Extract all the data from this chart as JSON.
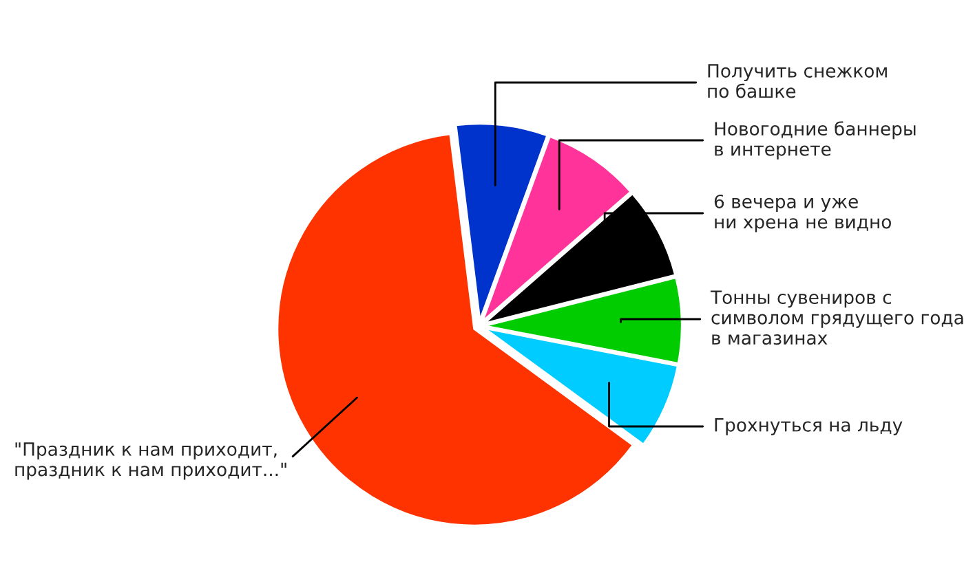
{
  "chart_data": {
    "type": "pie",
    "categories": [
      "Получить снежком\nпо башке",
      "Новогодние баннеры\nв интернете",
      "6 вечера и уже\nни хрена не видно",
      "Тонны сувениров с\nсимволом грядущего года\nв магазинах",
      "Грохнуться на льду",
      "\"Праздник к нам приходит,\nпраздник к нам приходит...\""
    ],
    "values": [
      7.5,
      8,
      7.5,
      7,
      7,
      63
    ],
    "colors": [
      "#0033cc",
      "#ff3399",
      "#000000",
      "#00cc00",
      "#00ccff",
      "#ff3300"
    ]
  }
}
